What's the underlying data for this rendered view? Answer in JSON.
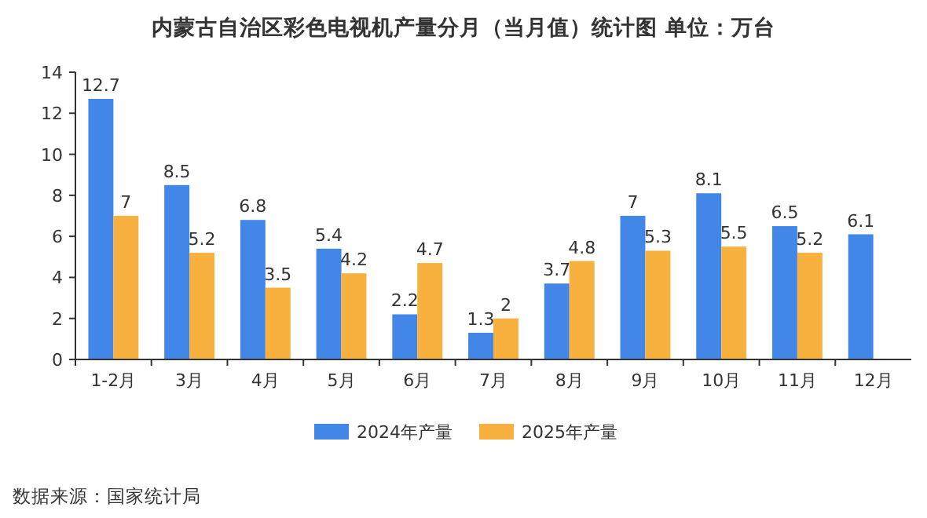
{
  "chart_data": {
    "type": "bar",
    "title": "内蒙古自治区彩色电视机产量分月（当月值）统计图 单位：万台",
    "categories": [
      "1-2月",
      "3月",
      "4月",
      "5月",
      "6月",
      "7月",
      "8月",
      "9月",
      "10月",
      "11月",
      "12月"
    ],
    "series": [
      {
        "name": "2024年产量",
        "color": "#4286e8",
        "values": [
          12.7,
          8.5,
          6.8,
          5.4,
          2.2,
          1.3,
          3.7,
          7,
          8.1,
          6.5,
          6.1
        ]
      },
      {
        "name": "2025年产量",
        "color": "#f8b03e",
        "values": [
          7,
          5.2,
          3.5,
          4.2,
          4.7,
          2,
          4.8,
          5.3,
          5.5,
          5.2,
          null
        ]
      }
    ],
    "ylim": [
      0,
      14
    ],
    "yticks": [
      0,
      2,
      4,
      6,
      8,
      10,
      12,
      14
    ],
    "data_labels": true,
    "legend": "bottom",
    "annotations": [
      "数据来源：国家统计局"
    ]
  }
}
